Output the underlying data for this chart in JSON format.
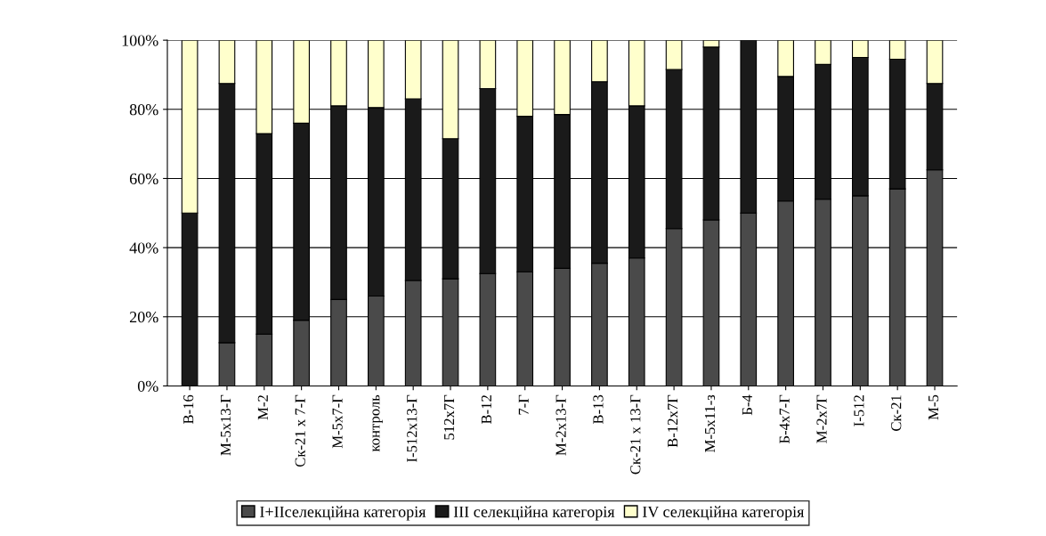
{
  "chart_data": {
    "type": "bar",
    "stacked": true,
    "categories": [
      "В-16",
      "М-5х13-Г",
      "М-2",
      "Ск-21 х 7-Г",
      "М-5х7-Г",
      "контроль",
      "І-512х13-Г",
      "512х7Г",
      "В-12",
      "7-Г",
      "М-2х13-Г",
      "В-13",
      "Ск-21 х 13-Г",
      "В-12х7Г",
      "М-5х11-з",
      "Б-4",
      "Б-4х7-Г",
      "М-2х7Г",
      "І-512",
      "Ск-21",
      "М-5"
    ],
    "series": [
      {
        "name": "І+ІІселекційна категорія",
        "color": "#4a4a4a",
        "values": [
          0,
          12.5,
          15,
          19,
          25,
          26,
          30.5,
          31,
          32.5,
          33,
          34,
          35.5,
          37,
          45.5,
          48,
          50,
          53.5,
          54,
          55,
          57,
          62.5
        ]
      },
      {
        "name": "ІІІ селекційна категорія",
        "color": "#1a1a1a",
        "values": [
          50,
          75,
          58,
          57,
          56,
          54.5,
          52.5,
          40.5,
          53.5,
          45,
          44.5,
          52.5,
          44,
          46,
          50,
          50,
          36,
          39,
          40,
          37.5,
          25
        ]
      },
      {
        "name": "ІV селекційна категорія",
        "color": "#ffffcc",
        "values": [
          50,
          12.5,
          27,
          24,
          19,
          19.5,
          17,
          28.5,
          14,
          22,
          21.5,
          12,
          19,
          8.5,
          2,
          0,
          10.5,
          7,
          5,
          5.5,
          12.5
        ]
      }
    ],
    "ylim": [
      0,
      100
    ],
    "yticks": [
      {
        "value": 0,
        "label": "0%"
      },
      {
        "value": 20,
        "label": "20%"
      },
      {
        "value": 40,
        "label": "40%"
      },
      {
        "value": 60,
        "label": "60%"
      },
      {
        "value": 80,
        "label": "80%"
      },
      {
        "value": 100,
        "label": "100%"
      }
    ],
    "grid": "y",
    "legend": "bottom"
  }
}
